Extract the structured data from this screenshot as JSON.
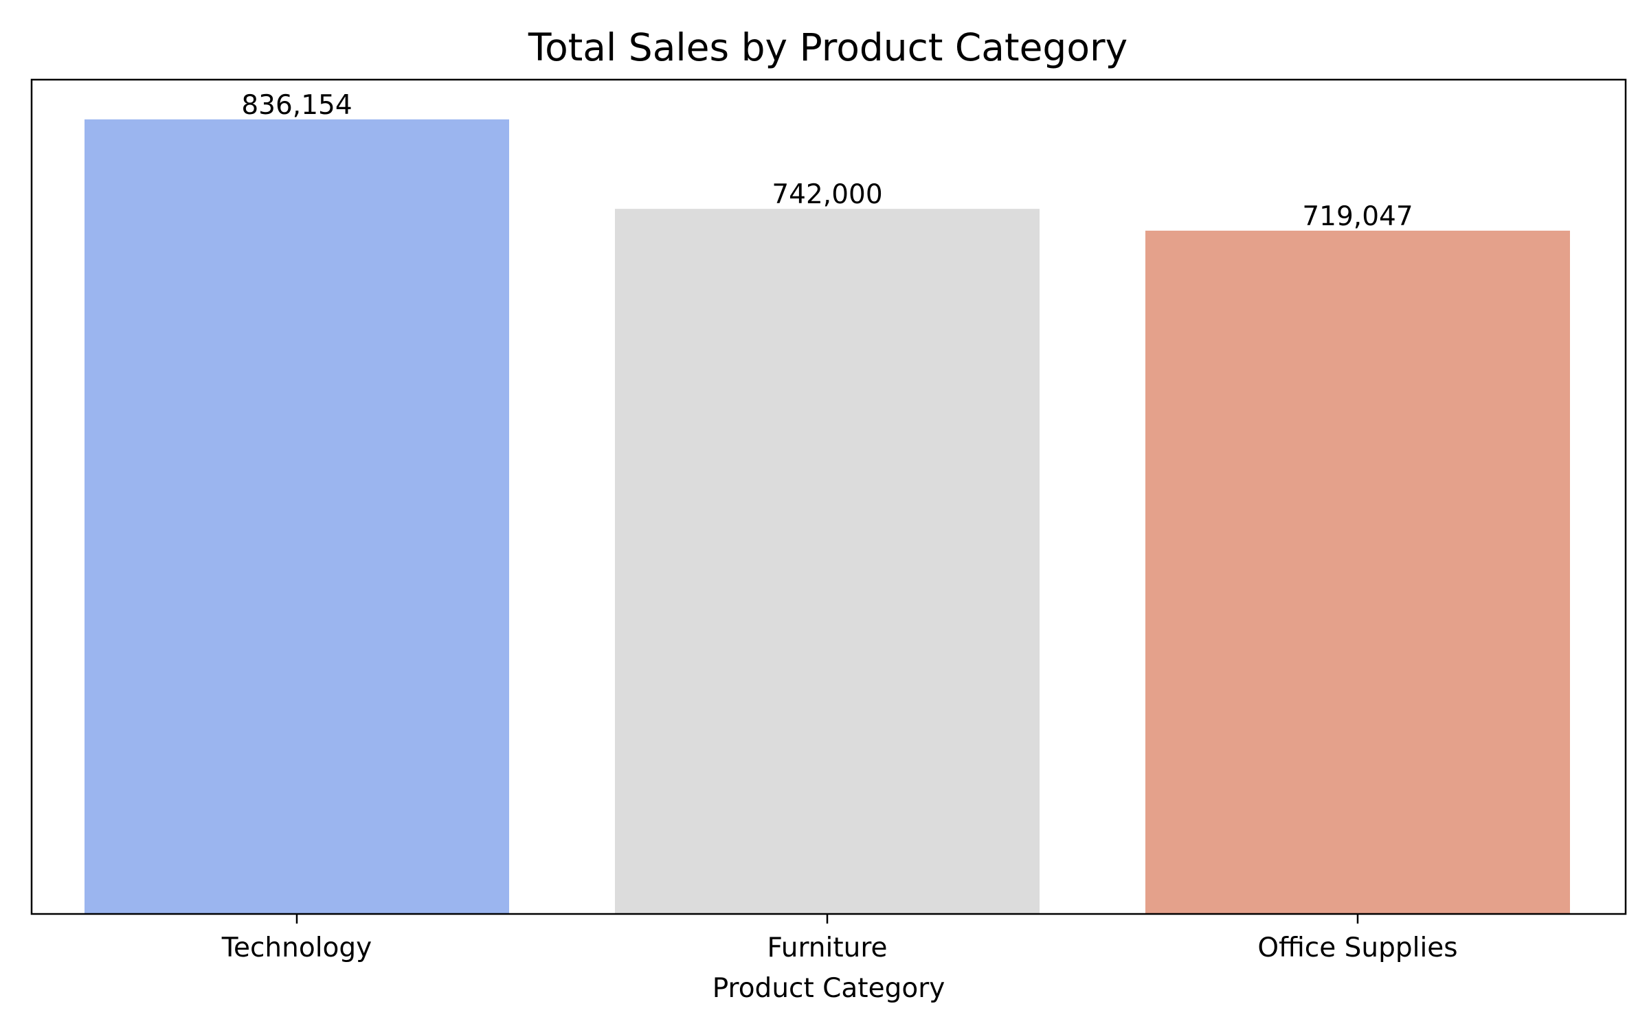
{
  "chart_data": {
    "type": "bar",
    "title": "Total Sales by Product Category",
    "xlabel": "Product Category",
    "ylabel": "",
    "categories": [
      "Technology",
      "Furniture",
      "Office Supplies"
    ],
    "values": [
      836154,
      742000,
      719047
    ],
    "data_labels": [
      "836,154",
      "742,000",
      "719,047"
    ],
    "colors": [
      "#9bb5ef",
      "#dcdcdc",
      "#e4a18b"
    ],
    "ylim": [
      0,
      877962
    ],
    "grid": false,
    "legend": "none"
  }
}
